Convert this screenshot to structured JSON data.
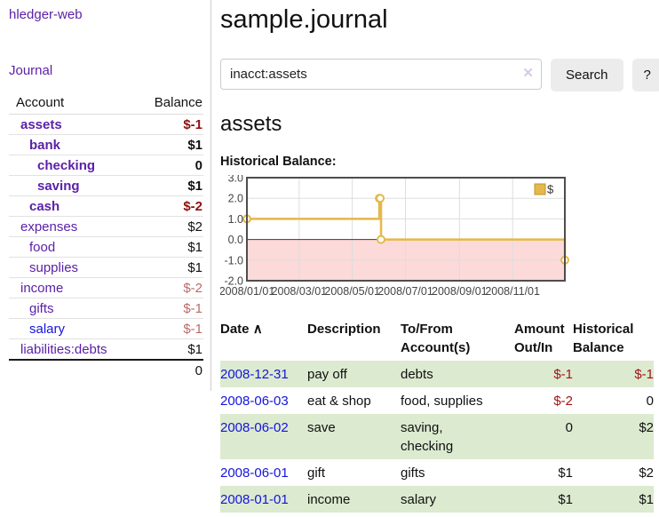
{
  "app": {
    "title": "hledger-web"
  },
  "sidebar": {
    "journal_label": "Journal",
    "accounts_table": {
      "account_header": "Account",
      "balance_header": "Balance",
      "rows": [
        {
          "name": "assets",
          "indent": 1,
          "bold": true,
          "balance": "$-1",
          "neg": "strong",
          "link": "purple"
        },
        {
          "name": "bank",
          "indent": 2,
          "bold": true,
          "balance": "$1",
          "neg": "none",
          "link": "purple"
        },
        {
          "name": "checking",
          "indent": 3,
          "bold": true,
          "balance": "0",
          "neg": "none",
          "link": "purple"
        },
        {
          "name": "saving",
          "indent": 3,
          "bold": true,
          "balance": "$1",
          "neg": "none",
          "link": "purple"
        },
        {
          "name": "cash",
          "indent": 2,
          "bold": true,
          "balance": "$-2",
          "neg": "strong",
          "link": "purple"
        },
        {
          "name": "expenses",
          "indent": 1,
          "bold": false,
          "balance": "$2",
          "neg": "none",
          "link": "purple"
        },
        {
          "name": "food",
          "indent": 2,
          "bold": false,
          "balance": "$1",
          "neg": "none",
          "link": "purple"
        },
        {
          "name": "supplies",
          "indent": 2,
          "bold": false,
          "balance": "$1",
          "neg": "none",
          "link": "purple"
        },
        {
          "name": "income",
          "indent": 1,
          "bold": false,
          "balance": "$-2",
          "neg": "soft",
          "link": "purple"
        },
        {
          "name": "gifts",
          "indent": 2,
          "bold": false,
          "balance": "$-1",
          "neg": "soft",
          "link": "purple"
        },
        {
          "name": "salary",
          "indent": 2,
          "bold": false,
          "balance": "$-1",
          "neg": "soft",
          "link": "blue"
        },
        {
          "name": "liabilities:debts",
          "indent": 1,
          "bold": false,
          "balance": "$1",
          "neg": "none",
          "link": "purple"
        }
      ],
      "total": "0"
    }
  },
  "main": {
    "title": "sample.journal",
    "search": {
      "value": "inacct:assets",
      "clear_icon": "✕",
      "button_label": "Search",
      "help_label": "?"
    },
    "account_heading": "assets",
    "chart_label": "Historical Balance:"
  },
  "chart_data": {
    "type": "line",
    "title": "Historical Balance",
    "step": true,
    "legend": [
      "$"
    ],
    "legend_position": "top-right",
    "grid": true,
    "xlim": [
      "2008-01-01",
      "2008-12-31"
    ],
    "ylim": [
      -2,
      3
    ],
    "yticks": [
      3.0,
      2.0,
      1.0,
      0.0,
      -1.0,
      -2.0
    ],
    "xticks": [
      {
        "date": "2008-01-01",
        "label": "2008/01/01"
      },
      {
        "date": "2008-03-01",
        "label": "2008/03/01"
      },
      {
        "date": "2008-05-01",
        "label": "2008/05/01"
      },
      {
        "date": "2008-07-01",
        "label": "2008/07/01"
      },
      {
        "date": "2008-09-01",
        "label": "2008/09/01"
      },
      {
        "date": "2008-11-01",
        "label": "2008/11/01"
      }
    ],
    "series": [
      {
        "name": "$",
        "points": [
          [
            "2008-01-01",
            1
          ],
          [
            "2008-06-01",
            2
          ],
          [
            "2008-06-02",
            2
          ],
          [
            "2008-06-03",
            0
          ],
          [
            "2008-12-31",
            -1
          ]
        ]
      }
    ],
    "colors": {
      "line": "#e5b84b",
      "marker_fill": "#ffffff",
      "negative_region": "#fcdada",
      "zero_line": "#8e1414",
      "grid": "#dddddd",
      "frame": "#4d4d4d",
      "labels": "#444444",
      "legend_box_border": "#c2952b"
    }
  },
  "transactions": {
    "headers": [
      "Date",
      "Description",
      "To/From Account(s)",
      "Amount Out/In",
      "Historical Balance"
    ],
    "sort_icon": "∧",
    "rows": [
      {
        "date": "2008-12-31",
        "description": "pay off",
        "accounts": "debts",
        "amount": "$-1",
        "amount_negative": true,
        "balance": "$-1",
        "balance_negative": true
      },
      {
        "date": "2008-06-03",
        "description": "eat & shop",
        "accounts": "food, supplies",
        "amount": "$-2",
        "amount_negative": true,
        "balance": "0",
        "balance_negative": false
      },
      {
        "date": "2008-06-02",
        "description": "save",
        "accounts": "saving,\nchecking",
        "amount": "0",
        "amount_negative": false,
        "balance": "$2",
        "balance_negative": false
      },
      {
        "date": "2008-06-01",
        "description": "gift",
        "accounts": "gifts",
        "amount": "$1",
        "amount_negative": false,
        "balance": "$2",
        "balance_negative": false
      },
      {
        "date": "2008-01-01",
        "description": "income",
        "accounts": "salary",
        "amount": "$1",
        "amount_negative": false,
        "balance": "$1",
        "balance_negative": false
      }
    ]
  }
}
